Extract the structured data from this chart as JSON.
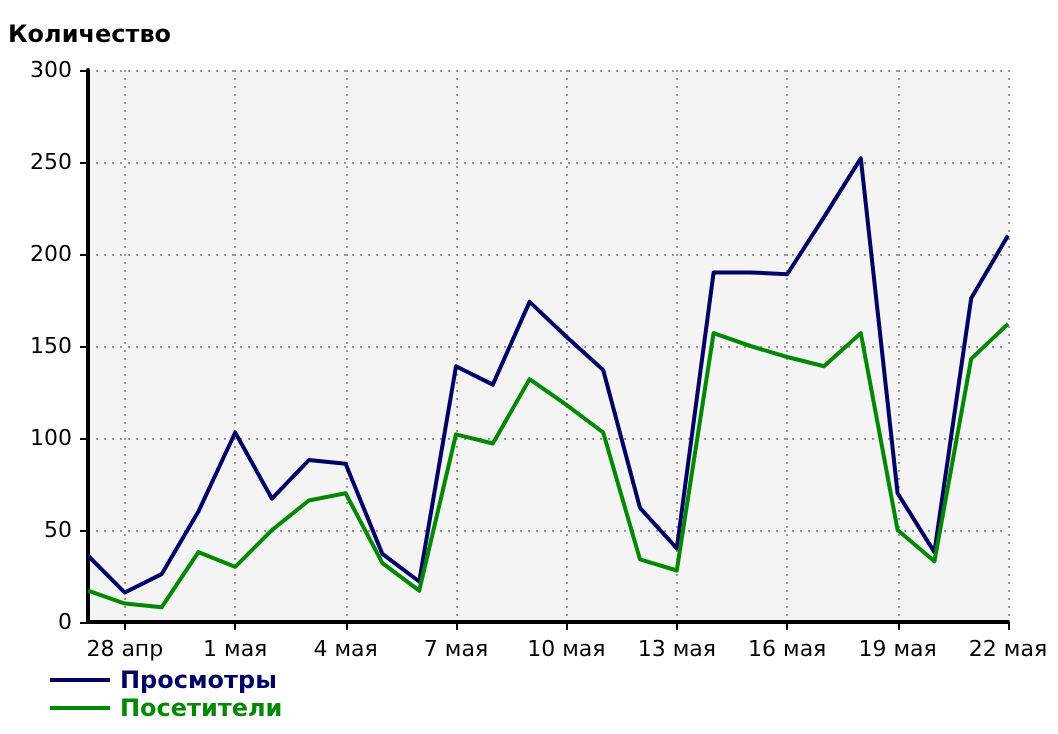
{
  "chart_data": {
    "type": "line",
    "ylabel": "Количество",
    "categories": [
      null,
      "28 апр",
      null,
      null,
      "1 мая",
      null,
      null,
      "4 мая",
      null,
      null,
      "7 мая",
      null,
      null,
      "10 мая",
      null,
      null,
      "13 мая",
      null,
      null,
      "16 мая",
      null,
      null,
      "19 мая",
      null,
      null,
      "22 мая"
    ],
    "series": [
      {
        "name": "Просмотры",
        "color": "#000066",
        "values": [
          36,
          16,
          26,
          60,
          103,
          67,
          88,
          86,
          37,
          22,
          139,
          129,
          174,
          155,
          137,
          62,
          40,
          190,
          190,
          189,
          220,
          252,
          70,
          38,
          176,
          210
        ]
      },
      {
        "name": "Посетители",
        "color": "#008800",
        "values": [
          17,
          10,
          8,
          38,
          30,
          50,
          66,
          70,
          32,
          17,
          102,
          97,
          132,
          118,
          103,
          34,
          28,
          157,
          150,
          144,
          139,
          157,
          50,
          33,
          143,
          162
        ]
      }
    ],
    "ylim": [
      0,
      300
    ],
    "yticks": [
      0,
      50,
      100,
      150,
      200,
      250,
      300
    ],
    "grid": true,
    "legend": "bottom left",
    "marker": "none",
    "line_style": "solid"
  }
}
